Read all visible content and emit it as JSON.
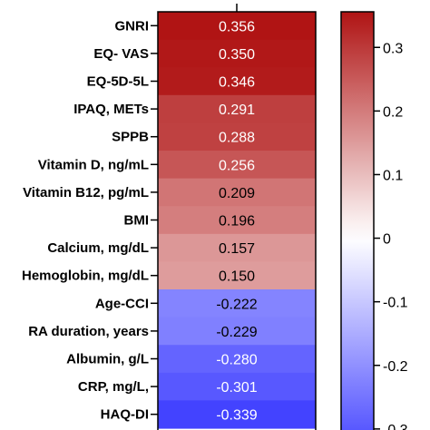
{
  "chart_data": {
    "type": "heatmap",
    "rows": [
      "GNRI",
      "EQ- VAS",
      "EQ-5D-5L",
      "IPAQ, METs",
      "SPPB",
      "Vitamin D, ng/mL",
      "Vitamin B12, pg/mL",
      "BMI",
      "Calcium, mg/dL",
      "Hemoglobin, mg/dL",
      "Age-CCI",
      "RA duration, years",
      "Albumin, g/L",
      "CRP, mg/L,",
      "HAQ-DI"
    ],
    "values": [
      0.356,
      0.35,
      0.346,
      0.291,
      0.288,
      0.256,
      0.209,
      0.196,
      0.157,
      0.15,
      -0.222,
      -0.229,
      -0.28,
      -0.301,
      -0.339
    ],
    "value_labels": [
      "0.356",
      "0.350",
      "0.346",
      "0.291",
      "0.288",
      "0.256",
      "0.209",
      "0.196",
      "0.157",
      "0.150",
      "-0.222",
      "-0.229",
      "-0.280",
      "-0.301",
      "-0.339"
    ],
    "colorbar": {
      "range": [
        -0.356,
        0.356
      ],
      "ticks": [
        0.3,
        0.2,
        0.1,
        0,
        -0.1,
        -0.2,
        -0.3
      ],
      "tick_labels": [
        "0.3",
        "0.2",
        "0.1",
        "0",
        "-0.1",
        "-0.2",
        "-0.3"
      ],
      "colors": {
        "high": "#b01414",
        "mid": "#ffffff",
        "low": "#3a3aff"
      }
    }
  }
}
